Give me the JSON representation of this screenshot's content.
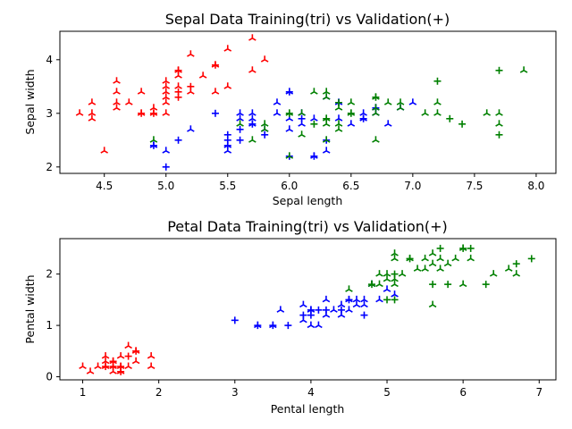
{
  "chart_data": [
    {
      "type": "scatter",
      "title": "Sepal Data Training(tri) vs Validation(+)",
      "xlabel": "Sepal length",
      "ylabel": "Sepal width",
      "xlim": [
        4.14,
        8.16
      ],
      "ylim": [
        1.88,
        4.53
      ],
      "xticks": [
        "4.5",
        "5.0",
        "5.5",
        "6.0",
        "6.5",
        "7.0",
        "7.5",
        "8.0"
      ],
      "yticks": [
        "2",
        "3",
        "4"
      ],
      "grid": false,
      "legend": "none",
      "series": [
        {
          "marker": "tri",
          "color": "#ff0000",
          "points": [
            [
              4.3,
              3.0
            ],
            [
              4.4,
              3.2
            ],
            [
              4.4,
              3.0
            ],
            [
              4.4,
              2.9
            ],
            [
              4.5,
              2.3
            ],
            [
              4.6,
              3.6
            ],
            [
              4.6,
              3.4
            ],
            [
              4.6,
              3.2
            ],
            [
              4.6,
              3.1
            ],
            [
              4.7,
              3.2
            ],
            [
              4.8,
              3.4
            ],
            [
              4.8,
              3.0
            ],
            [
              4.9,
              3.1
            ],
            [
              4.9,
              3.0
            ],
            [
              5.0,
              3.6
            ],
            [
              5.0,
              3.5
            ],
            [
              5.0,
              3.4
            ],
            [
              5.0,
              3.3
            ],
            [
              5.0,
              3.2
            ],
            [
              5.0,
              3.0
            ],
            [
              5.1,
              3.8
            ],
            [
              5.1,
              3.7
            ],
            [
              5.1,
              3.5
            ],
            [
              5.2,
              4.1
            ],
            [
              5.2,
              3.4
            ],
            [
              5.3,
              3.7
            ],
            [
              5.4,
              3.9
            ],
            [
              5.4,
              3.4
            ],
            [
              5.5,
              4.2
            ],
            [
              5.5,
              3.5
            ],
            [
              5.7,
              4.4
            ],
            [
              5.7,
              3.8
            ],
            [
              5.8,
              4.0
            ]
          ]
        },
        {
          "marker": "plus",
          "color": "#ff0000",
          "points": [
            [
              4.8,
              3.0
            ],
            [
              4.9,
              3.0
            ],
            [
              5.1,
              3.8
            ],
            [
              5.1,
              3.4
            ],
            [
              5.1,
              3.3
            ],
            [
              5.2,
              3.5
            ],
            [
              5.4,
              3.9
            ]
          ]
        },
        {
          "marker": "tri",
          "color": "#0000ff",
          "points": [
            [
              4.9,
              2.4
            ],
            [
              5.0,
              2.3
            ],
            [
              5.2,
              2.7
            ],
            [
              5.5,
              2.4
            ],
            [
              5.5,
              2.3
            ],
            [
              5.6,
              3.0
            ],
            [
              5.6,
              2.9
            ],
            [
              5.7,
              3.0
            ],
            [
              5.7,
              2.9
            ],
            [
              5.7,
              2.8
            ],
            [
              5.8,
              2.7
            ],
            [
              5.9,
              3.2
            ],
            [
              5.9,
              3.0
            ],
            [
              6.0,
              3.4
            ],
            [
              6.0,
              2.9
            ],
            [
              6.0,
              2.7
            ],
            [
              6.1,
              3.0
            ],
            [
              6.1,
              2.8
            ],
            [
              6.2,
              2.9
            ],
            [
              6.2,
              2.2
            ],
            [
              6.3,
              3.3
            ],
            [
              6.3,
              2.3
            ],
            [
              6.4,
              3.2
            ],
            [
              6.4,
              2.9
            ],
            [
              6.5,
              2.8
            ],
            [
              6.6,
              3.0
            ],
            [
              6.6,
              2.9
            ],
            [
              6.7,
              3.1
            ],
            [
              6.7,
              3.0
            ],
            [
              6.8,
              2.8
            ],
            [
              6.9,
              3.1
            ],
            [
              7.0,
              3.2
            ]
          ]
        },
        {
          "marker": "plus",
          "color": "#0000ff",
          "points": [
            [
              4.9,
              2.4
            ],
            [
              5.0,
              2.0
            ],
            [
              5.1,
              2.5
            ],
            [
              5.4,
              3.0
            ],
            [
              5.5,
              2.6
            ],
            [
              5.5,
              2.5
            ],
            [
              5.5,
              2.4
            ],
            [
              5.6,
              2.7
            ],
            [
              5.6,
              2.5
            ],
            [
              5.7,
              2.8
            ],
            [
              5.8,
              2.6
            ],
            [
              6.0,
              3.4
            ],
            [
              6.0,
              2.2
            ],
            [
              6.1,
              2.9
            ],
            [
              6.2,
              2.2
            ],
            [
              6.3,
              2.5
            ],
            [
              6.4,
              3.2
            ],
            [
              6.6,
              2.9
            ],
            [
              6.7,
              3.1
            ]
          ]
        },
        {
          "marker": "tri",
          "color": "#008000",
          "points": [
            [
              4.9,
              2.5
            ],
            [
              5.6,
              2.8
            ],
            [
              5.7,
              2.5
            ],
            [
              5.8,
              2.8
            ],
            [
              5.8,
              2.7
            ],
            [
              6.0,
              3.0
            ],
            [
              6.0,
              2.2
            ],
            [
              6.1,
              3.0
            ],
            [
              6.1,
              2.6
            ],
            [
              6.2,
              3.4
            ],
            [
              6.3,
              3.4
            ],
            [
              6.3,
              3.3
            ],
            [
              6.3,
              2.9
            ],
            [
              6.3,
              2.8
            ],
            [
              6.3,
              2.5
            ],
            [
              6.4,
              3.1
            ],
            [
              6.4,
              2.8
            ],
            [
              6.4,
              2.7
            ],
            [
              6.5,
              3.2
            ],
            [
              6.5,
              3.0
            ],
            [
              6.7,
              3.3
            ],
            [
              6.7,
              3.1
            ],
            [
              6.7,
              3.0
            ],
            [
              6.7,
              2.5
            ],
            [
              6.8,
              3.2
            ],
            [
              6.9,
              3.2
            ],
            [
              6.9,
              3.1
            ],
            [
              7.1,
              3.0
            ],
            [
              7.2,
              3.2
            ],
            [
              7.2,
              3.0
            ],
            [
              7.6,
              3.0
            ],
            [
              7.7,
              3.0
            ],
            [
              7.7,
              2.8
            ],
            [
              7.9,
              3.8
            ]
          ]
        },
        {
          "marker": "plus",
          "color": "#008000",
          "points": [
            [
              6.0,
              3.0
            ],
            [
              6.2,
              2.8
            ],
            [
              6.3,
              2.9
            ],
            [
              6.4,
              3.2
            ],
            [
              6.5,
              3.0
            ],
            [
              6.7,
              3.3
            ],
            [
              7.2,
              3.6
            ],
            [
              7.3,
              2.9
            ],
            [
              7.4,
              2.8
            ],
            [
              7.7,
              3.8
            ],
            [
              7.7,
              2.6
            ]
          ]
        }
      ]
    },
    {
      "type": "scatter",
      "title": "Petal Data Training(tri) vs Validation(+)",
      "xlabel": "Pental length",
      "ylabel": "Pental width",
      "xlim": [
        0.7,
        7.22
      ],
      "ylim": [
        -0.06,
        2.69
      ],
      "xticks": [
        "1",
        "2",
        "3",
        "4",
        "5",
        "6",
        "7"
      ],
      "yticks": [
        "0",
        "1",
        "2"
      ],
      "grid": false,
      "legend": "none",
      "series": [
        {
          "marker": "tri",
          "color": "#ff0000",
          "points": [
            [
              1.0,
              0.2
            ],
            [
              1.1,
              0.1
            ],
            [
              1.2,
              0.2
            ],
            [
              1.3,
              0.3
            ],
            [
              1.3,
              0.2
            ],
            [
              1.3,
              0.4
            ],
            [
              1.4,
              0.1
            ],
            [
              1.4,
              0.2
            ],
            [
              1.4,
              0.3
            ],
            [
              1.5,
              0.1
            ],
            [
              1.5,
              0.2
            ],
            [
              1.5,
              0.4
            ],
            [
              1.6,
              0.2
            ],
            [
              1.6,
              0.6
            ],
            [
              1.7,
              0.3
            ],
            [
              1.7,
              0.5
            ],
            [
              1.9,
              0.2
            ],
            [
              1.9,
              0.4
            ]
          ]
        },
        {
          "marker": "plus",
          "color": "#ff0000",
          "points": [
            [
              1.3,
              0.2
            ],
            [
              1.4,
              0.2
            ],
            [
              1.4,
              0.3
            ],
            [
              1.5,
              0.2
            ],
            [
              1.5,
              0.1
            ],
            [
              1.6,
              0.4
            ],
            [
              1.7,
              0.5
            ]
          ]
        },
        {
          "marker": "tri",
          "color": "#0000ff",
          "points": [
            [
              3.3,
              1.0
            ],
            [
              3.5,
              1.0
            ],
            [
              3.6,
              1.3
            ],
            [
              3.9,
              1.4
            ],
            [
              3.9,
              1.1
            ],
            [
              4.0,
              1.3
            ],
            [
              4.0,
              1.0
            ],
            [
              4.1,
              1.0
            ],
            [
              4.2,
              1.5
            ],
            [
              4.2,
              1.2
            ],
            [
              4.3,
              1.3
            ],
            [
              4.4,
              1.4
            ],
            [
              4.4,
              1.2
            ],
            [
              4.5,
              1.5
            ],
            [
              4.5,
              1.3
            ],
            [
              4.6,
              1.4
            ],
            [
              4.6,
              1.5
            ],
            [
              4.7,
              1.4
            ],
            [
              4.7,
              1.5
            ],
            [
              4.8,
              1.8
            ],
            [
              4.9,
              1.5
            ],
            [
              5.0,
              1.7
            ],
            [
              5.1,
              1.6
            ]
          ]
        },
        {
          "marker": "plus",
          "color": "#0000ff",
          "points": [
            [
              3.0,
              1.1
            ],
            [
              3.3,
              1.0
            ],
            [
              3.5,
              1.0
            ],
            [
              3.7,
              1.0
            ],
            [
              3.9,
              1.2
            ],
            [
              4.0,
              1.2
            ],
            [
              4.0,
              1.3
            ],
            [
              4.1,
              1.3
            ],
            [
              4.2,
              1.3
            ],
            [
              4.4,
              1.3
            ],
            [
              4.5,
              1.5
            ],
            [
              4.7,
              1.2
            ]
          ]
        },
        {
          "marker": "tri",
          "color": "#008000",
          "points": [
            [
              4.5,
              1.7
            ],
            [
              4.8,
              1.8
            ],
            [
              4.9,
              1.8
            ],
            [
              4.9,
              2.0
            ],
            [
              5.0,
              1.9
            ],
            [
              5.0,
              2.0
            ],
            [
              5.1,
              1.8
            ],
            [
              5.1,
              1.9
            ],
            [
              5.1,
              2.3
            ],
            [
              5.1,
              2.4
            ],
            [
              5.2,
              2.0
            ],
            [
              5.3,
              2.3
            ],
            [
              5.4,
              2.1
            ],
            [
              5.5,
              2.1
            ],
            [
              5.5,
              2.3
            ],
            [
              5.6,
              1.4
            ],
            [
              5.6,
              2.2
            ],
            [
              5.6,
              2.4
            ],
            [
              5.7,
              2.1
            ],
            [
              5.7,
              2.3
            ],
            [
              5.8,
              2.2
            ],
            [
              5.9,
              2.3
            ],
            [
              6.0,
              1.8
            ],
            [
              6.0,
              2.5
            ],
            [
              6.1,
              2.3
            ],
            [
              6.4,
              2.0
            ],
            [
              6.6,
              2.1
            ],
            [
              6.7,
              2.0
            ]
          ]
        },
        {
          "marker": "plus",
          "color": "#008000",
          "points": [
            [
              4.8,
              1.8
            ],
            [
              5.0,
              1.5
            ],
            [
              5.1,
              1.5
            ],
            [
              5.1,
              2.0
            ],
            [
              5.3,
              2.3
            ],
            [
              5.6,
              1.8
            ],
            [
              5.7,
              2.5
            ],
            [
              5.8,
              1.8
            ],
            [
              6.0,
              2.5
            ],
            [
              6.1,
              2.5
            ],
            [
              6.3,
              1.8
            ],
            [
              6.7,
              2.2
            ],
            [
              6.9,
              2.3
            ]
          ]
        }
      ]
    }
  ]
}
